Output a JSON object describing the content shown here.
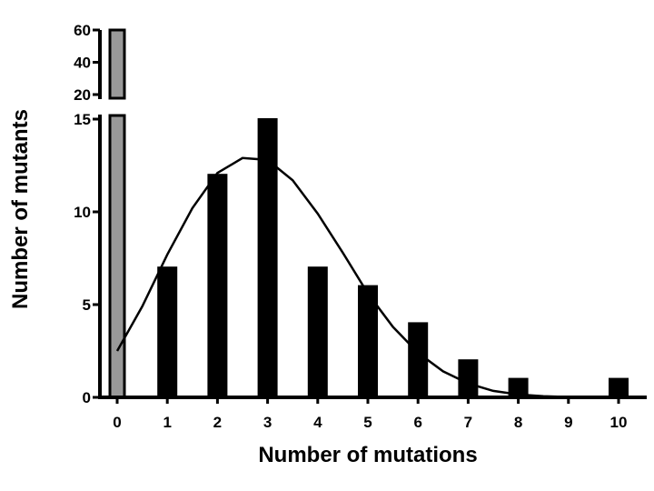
{
  "chart_data": {
    "type": "bar",
    "title": "",
    "xlabel": "Number of mutations",
    "ylabel": "Number of mutants",
    "categories": [
      "0",
      "1",
      "2",
      "3",
      "4",
      "5",
      "6",
      "7",
      "8",
      "9",
      "10"
    ],
    "series": [
      {
        "values": [
          60,
          7,
          12,
          15,
          7,
          6,
          4,
          2,
          1,
          0,
          1
        ]
      }
    ],
    "highlight": {
      "category": "0",
      "color": "#999999"
    },
    "bar_color": "#000000",
    "broken_y_axis": true,
    "ylim_lower": [
      0,
      15
    ],
    "ylim_upper": [
      15,
      60
    ],
    "y_ticks_lower": [
      "0",
      "5",
      "10",
      "15"
    ],
    "y_ticks_upper": [
      "20",
      "40",
      "60"
    ],
    "fit_curve": {
      "type": "line",
      "x": [
        0,
        0.5,
        1,
        1.5,
        2,
        2.5,
        3,
        3.5,
        4,
        4.5,
        5,
        5.5,
        6,
        6.5,
        7,
        7.5,
        8,
        8.5,
        9,
        9.5,
        10
      ],
      "y": [
        2.5,
        4.9,
        7.7,
        10.2,
        12.1,
        12.9,
        12.8,
        11.7,
        9.9,
        7.8,
        5.6,
        3.8,
        2.4,
        1.4,
        0.75,
        0.35,
        0.15,
        0.06,
        0.02,
        0.01,
        0
      ]
    }
  }
}
